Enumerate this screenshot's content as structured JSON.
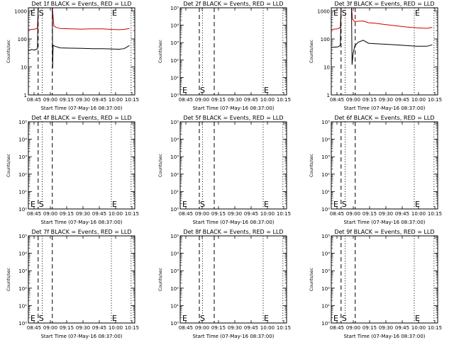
{
  "chart_data": [
    {
      "type": "line",
      "title": "Det 1f BLACK = Events, RED = LLD",
      "xlabel": "Start Time (07-May-16 08:37:00)",
      "ylabel": "Counts/sec",
      "yscale": "log",
      "x_tick_labels": [
        "08:45",
        "09:00",
        "09:15",
        "09:30",
        "09:45",
        "10:00",
        "10:15"
      ],
      "y_tick_labels": [
        "1",
        "10",
        "100",
        "1000"
      ],
      "y_ticks": [
        1,
        10,
        100,
        1000
      ],
      "ylim": [
        1,
        1300
      ],
      "x_range_minutes": [
        0,
        100
      ],
      "markers": [
        {
          "label": "E",
          "x": 0
        },
        {
          "label": "S",
          "x": 9.2
        },
        {
          "label": "E",
          "x": 78
        }
      ],
      "vlines_dashed": [
        9.2,
        22.5
      ],
      "vlines_dotted": [
        13,
        78,
        96.5
      ],
      "series": [
        {
          "color": "#cc0000",
          "values": [
            [
              0,
              215
            ],
            [
              6,
              225
            ],
            [
              8.5,
              240
            ],
            [
              9.2,
              1300
            ],
            [
              22.5,
              1300
            ],
            [
              24,
              290
            ],
            [
              26,
              260
            ],
            [
              30,
              235
            ],
            [
              40,
              230
            ],
            [
              50,
              225
            ],
            [
              60,
              230
            ],
            [
              70,
              230
            ],
            [
              78,
              220
            ],
            [
              85,
              215
            ],
            [
              90,
              220
            ],
            [
              95,
              235
            ]
          ]
        },
        {
          "color": "#000000",
          "values": [
            [
              0,
              38
            ],
            [
              3,
              42
            ],
            [
              6,
              40
            ],
            [
              8.5,
              45
            ],
            [
              9.2,
              1300
            ],
            [
              22.5,
              1300
            ],
            [
              22.8,
              9
            ],
            [
              23.2,
              60
            ],
            [
              25,
              55
            ],
            [
              30,
              48
            ],
            [
              40,
              47
            ],
            [
              50,
              46
            ],
            [
              60,
              45
            ],
            [
              70,
              45
            ],
            [
              78,
              44
            ],
            [
              85,
              43
            ],
            [
              90,
              45
            ],
            [
              95,
              58
            ]
          ]
        }
      ]
    },
    {
      "type": "line",
      "title": "Det 2f BLACK = Events, RED = LLD",
      "xlabel": "Start Time (07-May-16 08:37:00)",
      "ylabel": "Counts/sec",
      "yscale": "log",
      "x_tick_labels": [
        "08:45",
        "09:00",
        "09:15",
        "09:30",
        "09:45",
        "10:00",
        "10:15"
      ],
      "y_tick_labels": [
        "10⁰",
        "10¹",
        "10²",
        "10³",
        "10⁴",
        "10⁵"
      ],
      "y_ticks": [
        1,
        10,
        100,
        1000,
        10000,
        100000
      ],
      "ylim": [
        1,
        100000
      ],
      "x_range_minutes": [
        0,
        100
      ],
      "markers": [
        {
          "label": "E",
          "x": 0
        },
        {
          "label": "S",
          "x": 18
        },
        {
          "label": "E",
          "x": 78
        }
      ],
      "vlines_dashed": [
        18,
        32
      ],
      "vlines_dotted": [
        21,
        78,
        96.5
      ],
      "series": []
    },
    {
      "type": "line",
      "title": "Det 3f BLACK = Events, RED = LLD",
      "xlabel": "Start Time (07-May-16 08:37:00)",
      "ylabel": "Counts/sec",
      "yscale": "log",
      "x_tick_labels": [
        "08:45",
        "09:00",
        "09:15",
        "09:30",
        "09:45",
        "10:00",
        "10:15"
      ],
      "y_tick_labels": [
        "1",
        "10",
        "100",
        "1000"
      ],
      "y_ticks": [
        1,
        10,
        100,
        1000
      ],
      "ylim": [
        1,
        1300
      ],
      "x_range_minutes": [
        0,
        100
      ],
      "markers": [
        {
          "label": "E",
          "x": 0
        },
        {
          "label": "S",
          "x": 9.2
        },
        {
          "label": "E",
          "x": 78
        }
      ],
      "vlines_dashed": [
        9.2,
        22.5
      ],
      "vlines_dotted": [
        13,
        78,
        96.5
      ],
      "series": [
        {
          "color": "#cc0000",
          "values": [
            [
              0,
              220
            ],
            [
              6,
              230
            ],
            [
              8.5,
              260
            ],
            [
              9.2,
              1300
            ],
            [
              19,
              1300
            ],
            [
              20,
              500
            ],
            [
              22,
              420
            ],
            [
              25,
              430
            ],
            [
              30,
              440
            ],
            [
              35,
              380
            ],
            [
              40,
              370
            ],
            [
              50,
              330
            ],
            [
              60,
              300
            ],
            [
              70,
              270
            ],
            [
              80,
              250
            ],
            [
              90,
              240
            ],
            [
              95,
              260
            ]
          ]
        },
        {
          "color": "#000000",
          "values": [
            [
              0,
              50
            ],
            [
              6,
              52
            ],
            [
              8.5,
              58
            ],
            [
              9.2,
              1300
            ],
            [
              19,
              1300
            ],
            [
              19.5,
              12
            ],
            [
              20.5,
              30
            ],
            [
              22,
              55
            ],
            [
              25,
              75
            ],
            [
              30,
              90
            ],
            [
              35,
              70
            ],
            [
              40,
              68
            ],
            [
              50,
              65
            ],
            [
              60,
              62
            ],
            [
              70,
              58
            ],
            [
              80,
              55
            ],
            [
              90,
              55
            ],
            [
              95,
              62
            ]
          ]
        }
      ]
    },
    {
      "type": "line",
      "title": "Det 4f BLACK = Events, RED = LLD",
      "xlabel": "Start Time (07-May-16 08:37:00)",
      "ylabel": "Counts/sec",
      "yscale": "log",
      "x_tick_labels": [
        "08:45",
        "09:00",
        "09:15",
        "09:30",
        "09:45",
        "10:00",
        "10:15"
      ],
      "y_tick_labels": [
        "10⁰",
        "10¹",
        "10²",
        "10³",
        "10⁴",
        "10⁵"
      ],
      "y_ticks": [
        1,
        10,
        100,
        1000,
        10000,
        100000
      ],
      "ylim": [
        1,
        100000
      ],
      "x_range_minutes": [
        0,
        100
      ],
      "markers": [
        {
          "label": "E",
          "x": 0
        },
        {
          "label": "S",
          "x": 9.2
        },
        {
          "label": "E",
          "x": 78
        }
      ],
      "vlines_dashed": [
        9.2,
        22.5
      ],
      "vlines_dotted": [
        13,
        78,
        96.5
      ],
      "series": []
    },
    {
      "type": "line",
      "title": "Det 5f BLACK = Events, RED = LLD",
      "xlabel": "Start Time (07-May-16 08:37:00)",
      "ylabel": "Counts/sec",
      "yscale": "log",
      "x_tick_labels": [
        "08:45",
        "09:00",
        "09:15",
        "09:30",
        "09:45",
        "10:00",
        "10:15"
      ],
      "y_tick_labels": [
        "10⁰",
        "10¹",
        "10²",
        "10³",
        "10⁴",
        "10⁵"
      ],
      "y_ticks": [
        1,
        10,
        100,
        1000,
        10000,
        100000
      ],
      "ylim": [
        1,
        100000
      ],
      "x_range_minutes": [
        0,
        100
      ],
      "markers": [
        {
          "label": "E",
          "x": 0
        },
        {
          "label": "S",
          "x": 18
        },
        {
          "label": "E",
          "x": 78
        }
      ],
      "vlines_dashed": [
        18,
        32
      ],
      "vlines_dotted": [
        21,
        78,
        96.5
      ],
      "series": []
    },
    {
      "type": "line",
      "title": "Det 6f BLACK = Events, RED = LLD",
      "xlabel": "Start Time (07-May-16 08:37:00)",
      "ylabel": "Counts/sec",
      "yscale": "log",
      "x_tick_labels": [
        "08:45",
        "09:00",
        "09:15",
        "09:30",
        "09:45",
        "10:00",
        "10:15"
      ],
      "y_tick_labels": [
        "10⁰",
        "10¹",
        "10²",
        "10³",
        "10⁴",
        "10⁵"
      ],
      "y_ticks": [
        1,
        10,
        100,
        1000,
        10000,
        100000
      ],
      "ylim": [
        1,
        100000
      ],
      "x_range_minutes": [
        0,
        100
      ],
      "markers": [
        {
          "label": "E",
          "x": 0
        },
        {
          "label": "S",
          "x": 9.2
        },
        {
          "label": "E",
          "x": 78
        }
      ],
      "vlines_dashed": [
        9.2,
        22.5
      ],
      "vlines_dotted": [
        13,
        78,
        96.5
      ],
      "series": []
    },
    {
      "type": "line",
      "title": "Det 7f BLACK = Events, RED = LLD",
      "xlabel": "Start Time (07-May-16 08:37:00)",
      "ylabel": "Counts/sec",
      "yscale": "log",
      "x_tick_labels": [
        "08:45",
        "09:00",
        "09:15",
        "09:30",
        "09:45",
        "10:00",
        "10:15"
      ],
      "y_tick_labels": [
        "10⁰",
        "10¹",
        "10²",
        "10³",
        "10⁴",
        "10⁵"
      ],
      "y_ticks": [
        1,
        10,
        100,
        1000,
        10000,
        100000
      ],
      "ylim": [
        1,
        100000
      ],
      "x_range_minutes": [
        0,
        100
      ],
      "markers": [
        {
          "label": "E",
          "x": 0
        },
        {
          "label": "S",
          "x": 9.2
        },
        {
          "label": "E",
          "x": 78
        }
      ],
      "vlines_dashed": [
        9.2,
        22.5
      ],
      "vlines_dotted": [
        13,
        78,
        96.5
      ],
      "series": []
    },
    {
      "type": "line",
      "title": "Det 8f BLACK = Events, RED = LLD",
      "xlabel": "Start Time (07-May-16 08:37:00)",
      "ylabel": "Counts/sec",
      "yscale": "log",
      "x_tick_labels": [
        "08:45",
        "09:00",
        "09:15",
        "09:30",
        "09:45",
        "10:00",
        "10:15"
      ],
      "y_tick_labels": [
        "10⁰",
        "10¹",
        "10²",
        "10³",
        "10⁴",
        "10⁵"
      ],
      "y_ticks": [
        1,
        10,
        100,
        1000,
        10000,
        100000
      ],
      "ylim": [
        1,
        100000
      ],
      "x_range_minutes": [
        0,
        100
      ],
      "markers": [
        {
          "label": "E",
          "x": 0
        },
        {
          "label": "S",
          "x": 18
        },
        {
          "label": "E",
          "x": 78
        }
      ],
      "vlines_dashed": [
        18,
        32
      ],
      "vlines_dotted": [
        21,
        78,
        96.5
      ],
      "series": []
    },
    {
      "type": "line",
      "title": "Det 9f BLACK = Events, RED = LLD",
      "xlabel": "Start Time (07-May-16 08:37:00)",
      "ylabel": "Counts/sec",
      "yscale": "log",
      "x_tick_labels": [
        "08:45",
        "09:00",
        "09:15",
        "09:30",
        "09:45",
        "10:00",
        "10:15"
      ],
      "y_tick_labels": [
        "10⁰",
        "10¹",
        "10²",
        "10³",
        "10⁴",
        "10⁵"
      ],
      "y_ticks": [
        1,
        10,
        100,
        1000,
        10000,
        100000
      ],
      "ylim": [
        1,
        100000
      ],
      "x_range_minutes": [
        0,
        100
      ],
      "markers": [
        {
          "label": "E",
          "x": 0
        },
        {
          "label": "S",
          "x": 9.2
        },
        {
          "label": "E",
          "x": 78
        }
      ],
      "vlines_dashed": [
        9.2,
        22.5
      ],
      "vlines_dotted": [
        13,
        78,
        96.5
      ],
      "series": []
    }
  ]
}
